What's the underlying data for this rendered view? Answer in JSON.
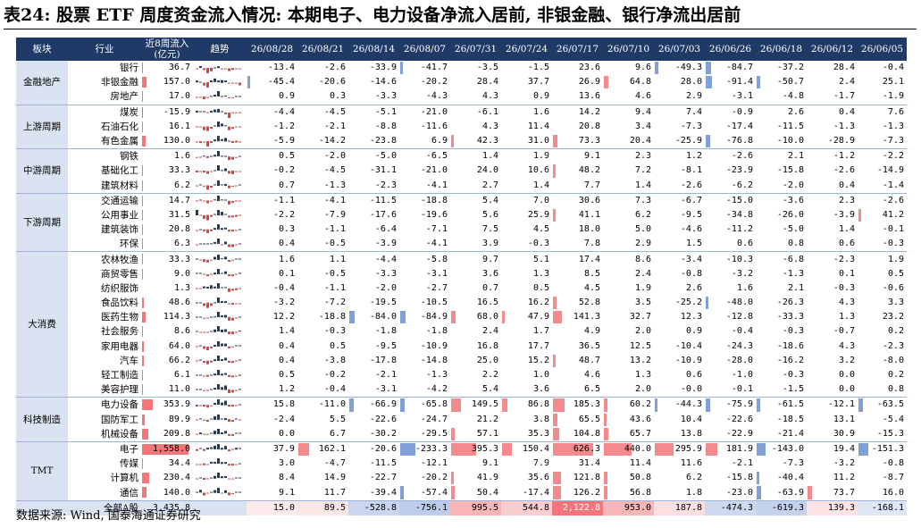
{
  "title": "表24: 股票 ETF 周度资金流入情况: 本期电子、电力设备净流入居前, 非银金融、银行净流出居前",
  "source": "数据来源: Wind, 国泰海通证券研究",
  "colors": {
    "header_bg": "#1f3a66",
    "sector_bg": "#dae3f1",
    "positive_bar": "#f2767a",
    "negative_bar": "#6b8fd0",
    "spark_pos": "#1f3a66",
    "spark_neg": "#e83b3b"
  },
  "chart_data": {
    "type": "table",
    "headers": {
      "sector": "板块",
      "industry": "行业",
      "flow8w": "近8周流入(亿元)",
      "trend": "趋势"
    },
    "weeks": [
      "26/08/28",
      "26/08/21",
      "26/08/14",
      "26/08/07",
      "26/07/31",
      "26/07/24",
      "26/07/17",
      "26/07/10",
      "26/07/03",
      "26/06/26",
      "26/06/18",
      "26/06/12",
      "26/06/05"
    ],
    "sectors": [
      {
        "name": "金融地产",
        "span": 3
      },
      {
        "name": "上游周期",
        "span": 3
      },
      {
        "name": "中游周期",
        "span": 3
      },
      {
        "name": "下游周期",
        "span": 4
      },
      {
        "name": "大消费",
        "span": 10
      },
      {
        "name": "科技制造",
        "span": 3
      },
      {
        "name": "TMT",
        "span": 4
      }
    ],
    "rows": [
      {
        "industry": "银行",
        "flow8w": "36.7",
        "values": [
          "-13.4",
          "-2.6",
          "-33.9",
          "-41.7",
          "-3.5",
          "-1.5",
          "23.6",
          "9.6",
          "-49.3",
          "-84.7",
          "-37.2",
          "28.4",
          "-0.4"
        ]
      },
      {
        "industry": "非银金融",
        "flow8w": "157.0",
        "values": [
          "-45.4",
          "-20.6",
          "-14.6",
          "-20.2",
          "28.4",
          "37.7",
          "26.9",
          "64.8",
          "28.0",
          "-91.4",
          "-50.7",
          "2.4",
          "25.1"
        ]
      },
      {
        "industry": "房地产",
        "flow8w": "17.0",
        "values": [
          "0.9",
          "0.3",
          "-3.3",
          "-4.3",
          "4.3",
          "0.9",
          "13.6",
          "4.6",
          "2.9",
          "-3.1",
          "-4.8",
          "-1.7",
          "-1.9"
        ]
      },
      {
        "industry": "煤炭",
        "flow8w": "-15.9",
        "values": [
          "-4.4",
          "-4.5",
          "-5.1",
          "-21.0",
          "-6.1",
          "1.6",
          "14.2",
          "9.4",
          "7.4",
          "-0.9",
          "2.6",
          "0.4",
          "7.6"
        ]
      },
      {
        "industry": "石油石化",
        "flow8w": "16.1",
        "values": [
          "-1.2",
          "-2.1",
          "-8.8",
          "-11.6",
          "4.3",
          "11.4",
          "20.8",
          "3.4",
          "-7.3",
          "-17.4",
          "-11.5",
          "-1.3",
          "-1.3"
        ]
      },
      {
        "industry": "有色金属",
        "flow8w": "130.0",
        "values": [
          "-5.9",
          "-14.2",
          "-23.8",
          "6.9",
          "42.3",
          "31.0",
          "73.3",
          "20.4",
          "-25.9",
          "-76.8",
          "-10.0",
          "-28.9",
          "-7.3"
        ]
      },
      {
        "industry": "钢铁",
        "flow8w": "1.6",
        "values": [
          "0.5",
          "-2.0",
          "-5.0",
          "-6.5",
          "1.4",
          "1.9",
          "9.1",
          "2.3",
          "1.2",
          "-2.6",
          "2.1",
          "-1.2",
          "-2.2"
        ]
      },
      {
        "industry": "基础化工",
        "flow8w": "33.3",
        "values": [
          "-0.2",
          "-4.5",
          "-31.1",
          "-21.0",
          "24.0",
          "10.6",
          "48.2",
          "7.2",
          "-8.1",
          "-23.9",
          "-15.8",
          "-2.6",
          "-14.9"
        ]
      },
      {
        "industry": "建筑材料",
        "flow8w": "6.2",
        "values": [
          "0.7",
          "-1.3",
          "-2.3",
          "-4.1",
          "2.7",
          "1.4",
          "7.7",
          "1.4",
          "-2.6",
          "-6.2",
          "-2.0",
          "0.4",
          "-1.4"
        ]
      },
      {
        "industry": "交通运输",
        "flow8w": "14.7",
        "values": [
          "-1.1",
          "-4.1",
          "-11.5",
          "-18.8",
          "5.4",
          "7.0",
          "30.6",
          "7.3",
          "-6.7",
          "-15.0",
          "-3.6",
          "2.3",
          "-2.6"
        ]
      },
      {
        "industry": "公用事业",
        "flow8w": "31.5",
        "values": [
          "-2.2",
          "-7.9",
          "-17.6",
          "-19.6",
          "5.6",
          "25.9",
          "41.1",
          "6.2",
          "-9.5",
          "-34.8",
          "-26.0",
          "-3.9",
          "41.2"
        ]
      },
      {
        "industry": "建筑装饰",
        "flow8w": "20.8",
        "values": [
          "0.3",
          "-1.1",
          "-6.4",
          "-7.1",
          "7.5",
          "4.5",
          "18.0",
          "5.0",
          "-4.6",
          "-11.2",
          "-5.0",
          "1.4",
          "-0.1"
        ]
      },
      {
        "industry": "环保",
        "flow8w": "6.3",
        "values": [
          "0.4",
          "-0.5",
          "-3.9",
          "-4.1",
          "3.9",
          "-0.3",
          "7.8",
          "2.9",
          "1.5",
          "0.6",
          "0.8",
          "0.6",
          "-0.3"
        ]
      },
      {
        "industry": "农林牧渔",
        "flow8w": "33.3",
        "values": [
          "1.6",
          "1.1",
          "-4.4",
          "-5.8",
          "9.7",
          "5.1",
          "17.4",
          "8.6",
          "-3.4",
          "-10.3",
          "-6.8",
          "-2.3",
          "1.9"
        ]
      },
      {
        "industry": "商贸零售",
        "flow8w": "9.0",
        "values": [
          "0.1",
          "-0.5",
          "-3.3",
          "-3.1",
          "3.6",
          "1.3",
          "8.5",
          "2.4",
          "-0.8",
          "-3.2",
          "-1.3",
          "0.1",
          "0.5"
        ]
      },
      {
        "industry": "纺织服饰",
        "flow8w": "1.3",
        "values": [
          "-0.4",
          "-1.1",
          "-2.0",
          "-2.7",
          "0.7",
          "0.5",
          "4.5",
          "1.9",
          "2.6",
          "1.6",
          "2.1",
          "-0.3",
          "-0.6"
        ]
      },
      {
        "industry": "食品饮料",
        "flow8w": "48.6",
        "values": [
          "-3.2",
          "-7.2",
          "-19.5",
          "-10.5",
          "16.5",
          "16.2",
          "52.8",
          "3.5",
          "-25.2",
          "-48.0",
          "-26.3",
          "4.3",
          "3.3"
        ]
      },
      {
        "industry": "医药生物",
        "flow8w": "114.3",
        "values": [
          "12.2",
          "-18.8",
          "-84.0",
          "-84.9",
          "68.0",
          "47.9",
          "141.3",
          "32.7",
          "12.3",
          "-12.8",
          "-33.3",
          "1.3",
          "23.2"
        ]
      },
      {
        "industry": "社会服务",
        "flow8w": "8.6",
        "values": [
          "1.4",
          "-0.3",
          "-1.8",
          "-1.8",
          "2.4",
          "1.7",
          "4.9",
          "2.0",
          "0.9",
          "-0.4",
          "-0.3",
          "-0.7",
          "0.2"
        ]
      },
      {
        "industry": "家用电器",
        "flow8w": "64.0",
        "values": [
          "0.4",
          "0.5",
          "-9.5",
          "-10.9",
          "16.8",
          "17.7",
          "36.5",
          "12.5",
          "-10.4",
          "-24.3",
          "-18.6",
          "4.3",
          "-2.3"
        ]
      },
      {
        "industry": "汽车",
        "flow8w": "66.2",
        "values": [
          "0.4",
          "-3.8",
          "-17.8",
          "-14.8",
          "25.0",
          "15.2",
          "48.7",
          "13.2",
          "-10.9",
          "-28.0",
          "-16.2",
          "3.2",
          "-8.0"
        ]
      },
      {
        "industry": "轻工制造",
        "flow8w": "6.1",
        "values": [
          "0.5",
          "-0.2",
          "-2.1",
          "-1.3",
          "2.2",
          "1.0",
          "4.6",
          "1.3",
          "0.6",
          "-1.0",
          "-0.3",
          "0.0",
          "0.2"
        ]
      },
      {
        "industry": "美容护理",
        "flow8w": "11.0",
        "values": [
          "1.2",
          "-0.4",
          "-3.1",
          "-4.2",
          "5.4",
          "3.6",
          "6.5",
          "2.0",
          "-0.0",
          "-0.1",
          "-1.5",
          "0.0",
          "0.8"
        ]
      },
      {
        "industry": "电力设备",
        "flow8w": "353.9",
        "values": [
          "15.8",
          "-11.0",
          "-66.9",
          "-65.8",
          "149.5",
          "86.8",
          "185.3",
          "60.2",
          "-44.3",
          "-75.9",
          "-61.5",
          "-12.1",
          "-63.5"
        ]
      },
      {
        "industry": "国防军工",
        "flow8w": "89.9",
        "values": [
          "-2.4",
          "5.5",
          "-22.6",
          "-24.7",
          "21.2",
          "3.8",
          "65.5",
          "43.6",
          "10.4",
          "-22.6",
          "-18.5",
          "13.1",
          "-5.4"
        ]
      },
      {
        "industry": "机械设备",
        "flow8w": "209.8",
        "values": [
          "0.0",
          "6.7",
          "-30.2",
          "-29.5",
          "57.1",
          "35.3",
          "104.8",
          "65.7",
          "13.8",
          "-22.9",
          "-21.4",
          "30.9",
          "-15.3"
        ]
      },
      {
        "industry": "电子",
        "flow8w": "1,558.0",
        "values": [
          "37.9",
          "162.1",
          "-20.6",
          "-233.3",
          "395.3",
          "150.4",
          "626.3",
          "440.0",
          "295.9",
          "181.9",
          "-143.0",
          "19.4",
          "-151.3"
        ]
      },
      {
        "industry": "传媒",
        "flow8w": "34.4",
        "values": [
          "3.0",
          "-4.7",
          "-11.5",
          "-12.1",
          "9.1",
          "7.9",
          "31.4",
          "11.4",
          "11.6",
          "-2.1",
          "-7.3",
          "-3.2",
          "-0.8"
        ]
      },
      {
        "industry": "计算机",
        "flow8w": "230.4",
        "values": [
          "8.4",
          "14.9",
          "-22.7",
          "-20.2",
          "41.9",
          "35.6",
          "121.8",
          "50.8",
          "6.2",
          "-15.8",
          "-40.4",
          "11.2",
          "-8.7"
        ]
      },
      {
        "industry": "通信",
        "flow8w": "140.0",
        "values": [
          "9.1",
          "11.7",
          "-39.4",
          "-57.4",
          "50.4",
          "-17.4",
          "126.2",
          "56.8",
          "1.8",
          "-23.0",
          "-63.9",
          "73.7",
          "16.0"
        ]
      }
    ],
    "total": {
      "label": "全部A股",
      "flow8w": "3,435.8",
      "values": [
        "15.0",
        "89.5",
        "-528.8",
        "-756.1",
        "995.5",
        "544.8",
        "2,122.8",
        "953.0",
        "187.8",
        "-474.3",
        "-619.3",
        "139.3",
        "-168.1"
      ]
    }
  }
}
